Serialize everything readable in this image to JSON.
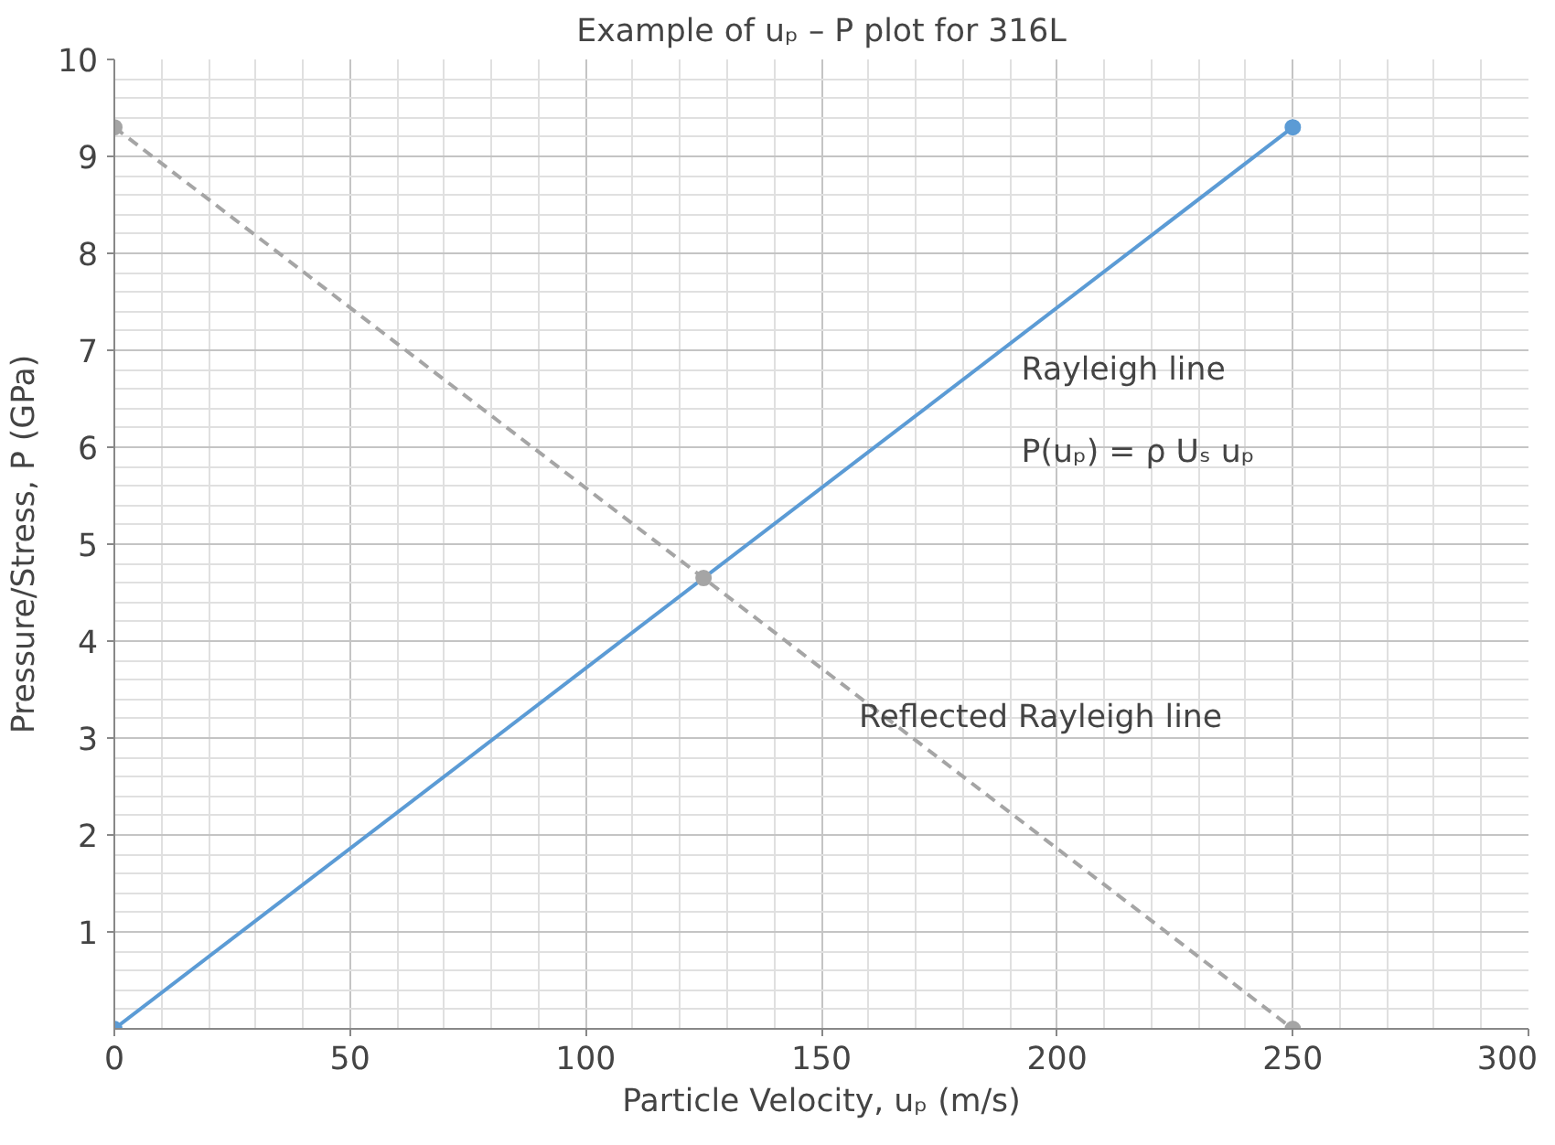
{
  "chart_data": {
    "type": "line",
    "title": "Example of uₚ – P plot for 316L",
    "xlabel": "Particle Velocity, uₚ (m/s)",
    "ylabel": "Pressure/Stress, P (GPa)",
    "series": [
      {
        "color": "#5b9bd5",
        "x": [
          0,
          250
        ],
        "values": [
          0,
          9.3
        ],
        "line_style": "solid"
      },
      {
        "color": "#a5a5a5",
        "x": [
          0,
          125,
          250
        ],
        "values": [
          9.3,
          4.65,
          0
        ],
        "line_style": "dashed"
      }
    ],
    "xlim": [
      0,
      300
    ],
    "xticks": [
      0,
      50,
      100,
      150,
      200,
      250,
      300
    ],
    "ylim": [
      0,
      10
    ],
    "yticks": [
      1,
      2,
      3,
      4,
      5,
      6,
      7,
      8,
      9,
      10
    ],
    "grid": true,
    "marker": "circle",
    "annotations": [
      "Rayleigh line",
      "P(uₚ) = ρ Uₛ uₚ",
      "Reflected Rayleigh line"
    ]
  }
}
